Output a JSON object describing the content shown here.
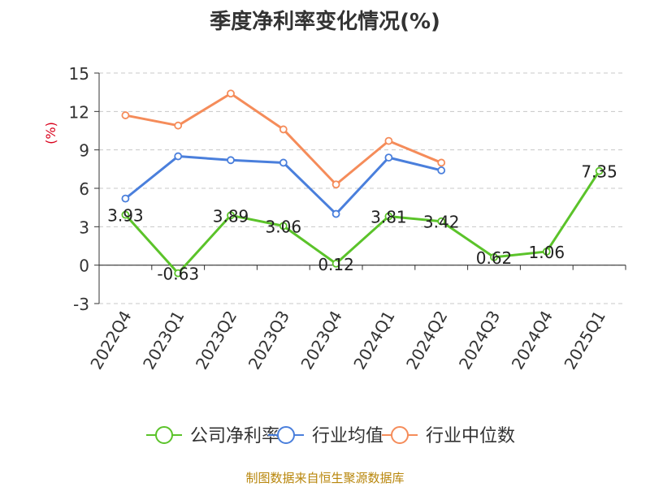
{
  "chart_data": {
    "type": "line",
    "title": "季度净利率变化情况(%)",
    "ylabel": "(%)",
    "xlabel": "",
    "categories": [
      "2022Q4",
      "2023Q1",
      "2023Q2",
      "2023Q3",
      "2023Q4",
      "2024Q1",
      "2024Q2",
      "2024Q3",
      "2024Q4",
      "2025Q1"
    ],
    "ylim": [
      -3,
      15
    ],
    "yticks": [
      -3,
      0,
      3,
      6,
      9,
      12,
      15
    ],
    "grid": "horizontal-dashed",
    "legend": "bottom-center",
    "series": [
      {
        "name": "公司净利率",
        "color": "#5bc32a",
        "labeled": true,
        "values": [
          3.93,
          -0.63,
          3.89,
          3.06,
          0.12,
          3.81,
          3.42,
          0.62,
          1.06,
          7.35
        ],
        "labels": [
          "3.93",
          "-0.63",
          "3.89",
          "3.06",
          "0.12",
          "3.81",
          "3.42",
          "0.62",
          "1.06",
          "7.35"
        ]
      },
      {
        "name": "行业均值",
        "color": "#4a7fdc",
        "labeled": false,
        "values": [
          5.2,
          8.5,
          8.2,
          8.0,
          4.0,
          8.4,
          7.4,
          null,
          null,
          null
        ]
      },
      {
        "name": "行业中位数",
        "color": "#f58c5a",
        "labeled": false,
        "values": [
          11.7,
          10.9,
          13.4,
          10.6,
          6.3,
          9.7,
          8.0,
          null,
          null,
          null
        ]
      }
    ]
  },
  "footer": {
    "source": "制图数据来自恒生聚源数据库"
  }
}
